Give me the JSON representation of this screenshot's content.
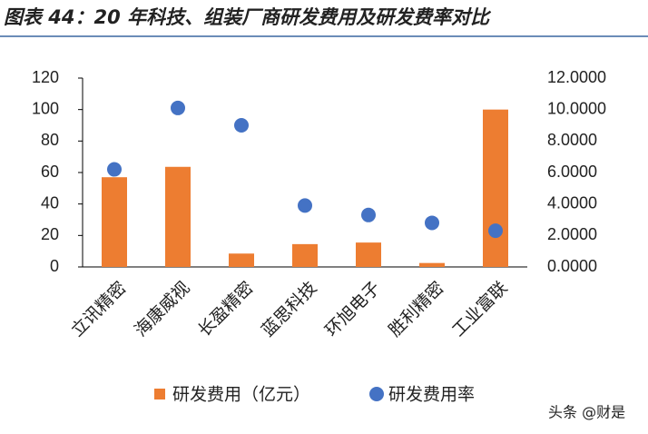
{
  "chart_data": {
    "type": "bar",
    "title": "图表 44：20 年科技、组装厂商研发费用及研发费率对比",
    "categories": [
      "立讯精密",
      "海康威视",
      "长盈精密",
      "蓝思科技",
      "环旭电子",
      "胜利精密",
      "工业富联"
    ],
    "series": [
      {
        "name": "研发费用（亿元）",
        "color": "#ed7d31",
        "type": "bar",
        "values": [
          57,
          63.6,
          8.5,
          14.5,
          15.5,
          2.5,
          100
        ]
      },
      {
        "name": "研发费用率",
        "color": "#4472c4",
        "type": "scatter",
        "axis": "y2",
        "values": [
          6.2,
          10.1,
          9.0,
          3.9,
          3.3,
          2.8,
          2.3
        ]
      }
    ],
    "ylim": [
      0,
      120
    ],
    "yticks": [
      0,
      20,
      40,
      60,
      80,
      100,
      120
    ],
    "y2lim": [
      0,
      12
    ],
    "y2ticks": [
      {
        "value": 0,
        "label": "0.0000"
      },
      {
        "value": 2,
        "label": "2.0000"
      },
      {
        "value": 4,
        "label": "4.0000"
      },
      {
        "value": 6,
        "label": "6.0000"
      },
      {
        "value": 8,
        "label": "8.0000"
      },
      {
        "value": 10,
        "label": "10.0000"
      },
      {
        "value": 12,
        "label": "12.0000"
      }
    ],
    "watermark": "头条 @财是"
  }
}
